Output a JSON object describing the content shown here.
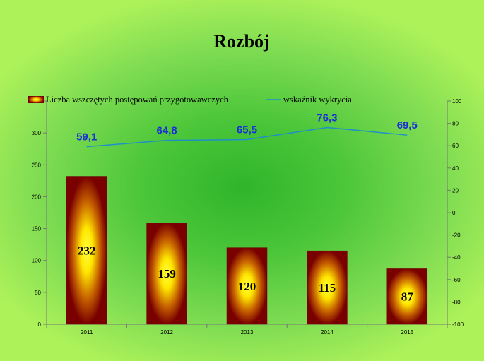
{
  "chart_data": {
    "type": "bar",
    "title": "Rozbój",
    "categories": [
      "2011",
      "2012",
      "2013",
      "2014",
      "2015"
    ],
    "series": [
      {
        "name": "Liczba wszczętych postępowań przygotowawczych",
        "type": "bar",
        "axis": "left",
        "values": [
          232,
          159,
          120,
          115,
          87
        ],
        "color": "#8b0000"
      },
      {
        "name": "wskaźnik wykrycia",
        "type": "line",
        "axis": "right",
        "values": [
          59.1,
          64.8,
          65.5,
          76.3,
          69.5
        ],
        "labels": [
          "59,1",
          "64,8",
          "65,5",
          "76,3",
          "69,5"
        ],
        "color": "#1e90c8"
      }
    ],
    "y_left": {
      "range": [
        0,
        350
      ],
      "ticks": [
        0,
        50,
        100,
        150,
        200,
        250,
        300,
        350
      ]
    },
    "y_right": {
      "range": [
        -100,
        100
      ],
      "ticks": [
        -100,
        -80,
        -60,
        -40,
        -20,
        0,
        20,
        40,
        60,
        80,
        100
      ]
    },
    "legend": "top-left",
    "grid": false,
    "colors": {
      "bar_dark": "#8b0000",
      "bar_glow": "#ffff00",
      "line": "#1e90c8",
      "line_label": "#1a2fd6"
    }
  }
}
